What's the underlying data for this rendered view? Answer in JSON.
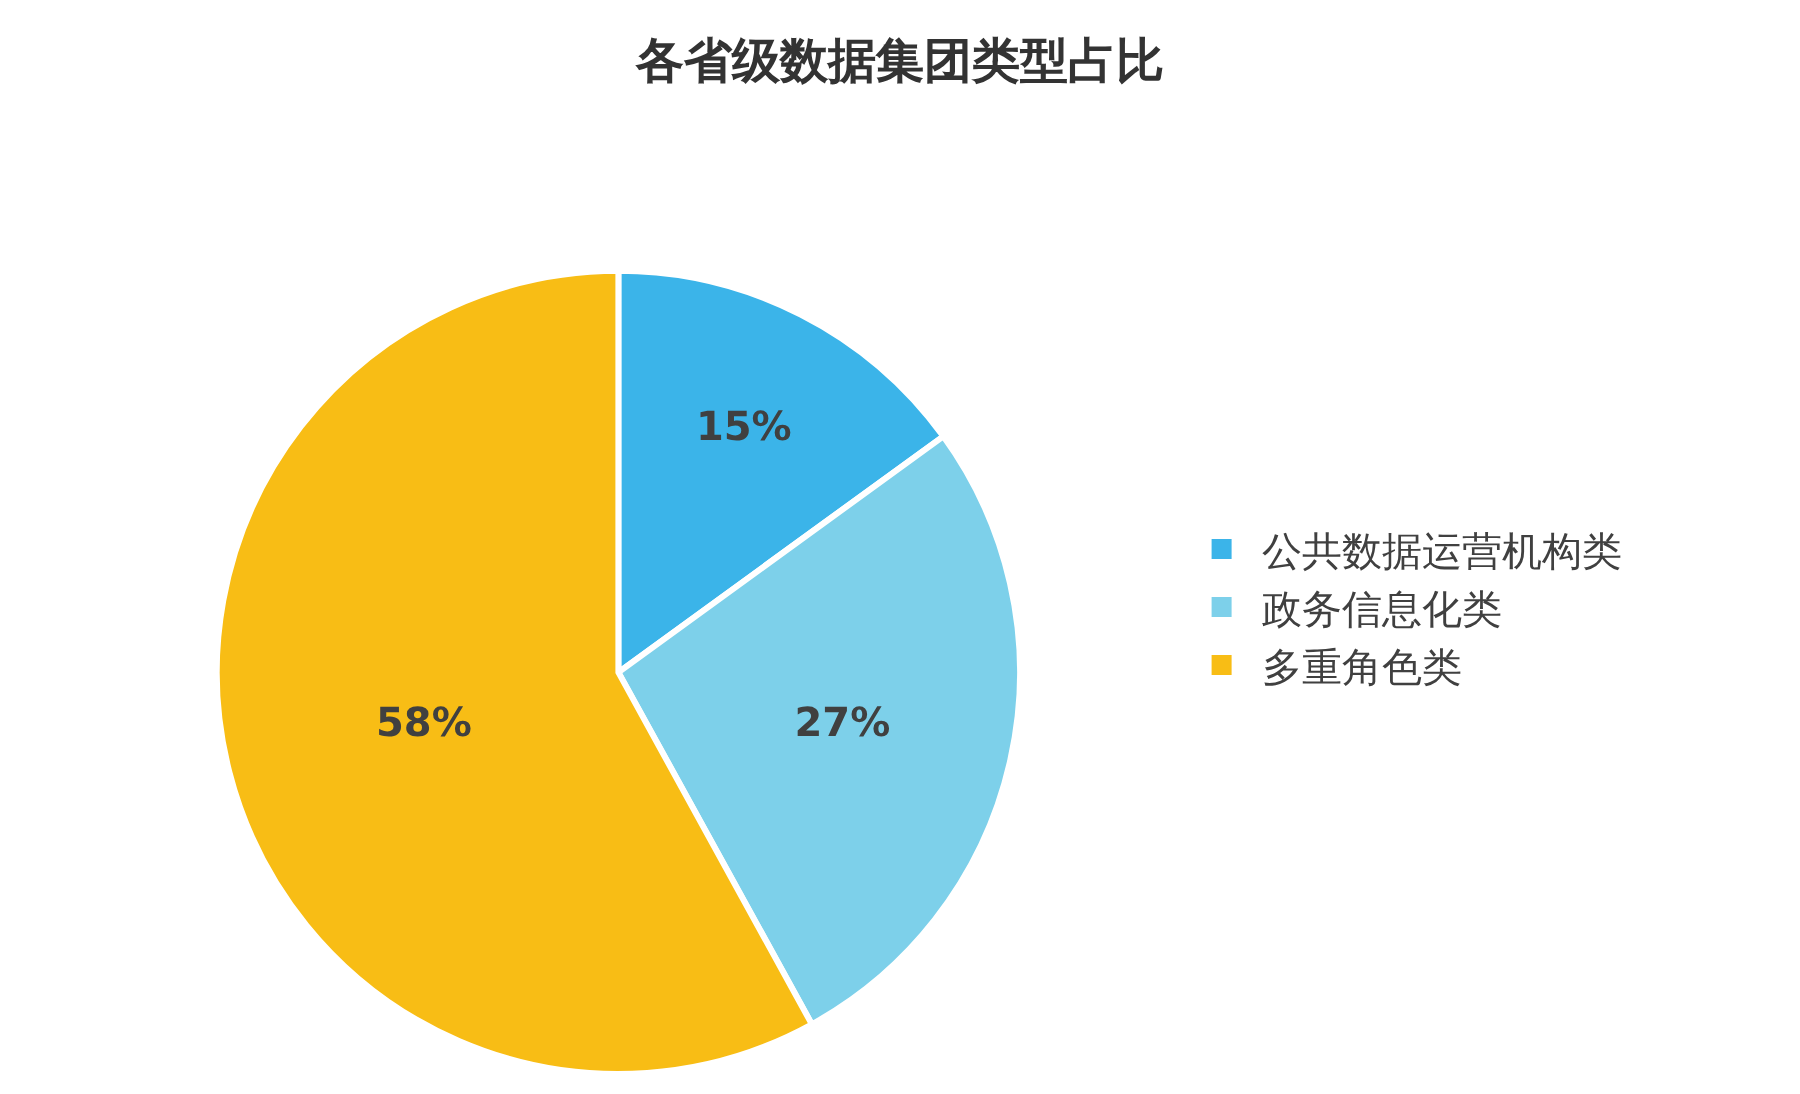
{
  "chart_data": {
    "type": "pie",
    "title": "各省级数据集团类型占比",
    "categories": [
      "公共数据运营机构类",
      "政务信息化类",
      "多重角色类"
    ],
    "values": [
      15,
      27,
      58
    ],
    "colors": [
      "#3bb4e9",
      "#7dd0ea",
      "#f8bd15"
    ],
    "value_labels": [
      "15%",
      "27%",
      "58%"
    ],
    "legend": "right"
  }
}
